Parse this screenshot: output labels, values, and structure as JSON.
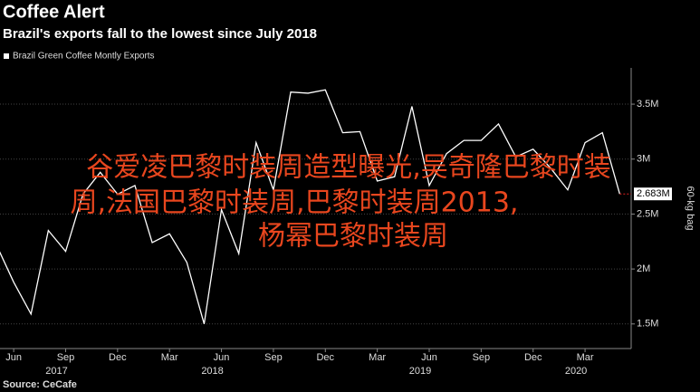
{
  "chart_data": {
    "type": "line",
    "title": "Coffee Alert",
    "subtitle": "Brazil's exports fall to the lowest since July 2018",
    "y_axis_label": "60-kg bag",
    "source": "Source: CeCafe",
    "overlay_text": [
      "谷爱凌巴黎时装周造型曝光,吴奇隆巴黎时装",
      "周,法国巴黎时装周,巴黎时装周2013,",
      "杨幂巴黎时装周"
    ],
    "categories": [
      null,
      "Jun",
      null,
      null,
      "Sep",
      null,
      null,
      "Dec",
      null,
      null,
      "Mar",
      null,
      null,
      "Jun",
      null,
      null,
      "Sep",
      null,
      null,
      "Dec",
      null,
      null,
      "Mar",
      null,
      null,
      "Jun",
      null,
      null,
      "Sep",
      null,
      null,
      "Dec",
      null,
      null,
      "Mar",
      null,
      null
    ],
    "year_labels": [
      null,
      null,
      null,
      null,
      "2017",
      null,
      null,
      null,
      null,
      null,
      null,
      null,
      null,
      "2018",
      null,
      null,
      null,
      null,
      null,
      null,
      null,
      null,
      null,
      null,
      null,
      "2019",
      null,
      null,
      null,
      null,
      null,
      null,
      null,
      null,
      "2020",
      null,
      null
    ],
    "series": [
      {
        "name": "Brazil Green Coffee Montly Exports",
        "color": "#ffffff",
        "values": [
          2.22,
          1.88,
          1.59,
          2.35,
          2.16,
          2.68,
          2.88,
          2.68,
          2.76,
          2.24,
          2.32,
          2.06,
          1.5,
          2.54,
          2.14,
          3.15,
          2.72,
          3.61,
          3.6,
          3.63,
          3.24,
          3.25,
          2.8,
          2.84,
          3.48,
          2.76,
          3.05,
          3.17,
          3.17,
          3.32,
          3.02,
          3.09,
          2.92,
          2.72,
          3.15,
          3.24,
          2.683
        ],
        "value_labels": [
          null,
          null,
          null,
          null,
          null,
          null,
          null,
          null,
          null,
          null,
          null,
          null,
          null,
          null,
          null,
          null,
          null,
          null,
          null,
          null,
          null,
          null,
          null,
          null,
          null,
          null,
          null,
          null,
          null,
          null,
          null,
          null,
          null,
          null,
          null,
          null,
          "2.683M"
        ]
      }
    ],
    "ylim": [
      1.276,
      3.83
    ],
    "yticks": [
      {
        "value": 1.5,
        "label": "1.5M"
      },
      {
        "value": 2,
        "label": "2M"
      },
      {
        "value": 2.5,
        "label": "2.5M"
      },
      {
        "value": 3,
        "label": "3M"
      },
      {
        "value": 3.5,
        "label": "3.5M"
      }
    ],
    "grid": true
  }
}
